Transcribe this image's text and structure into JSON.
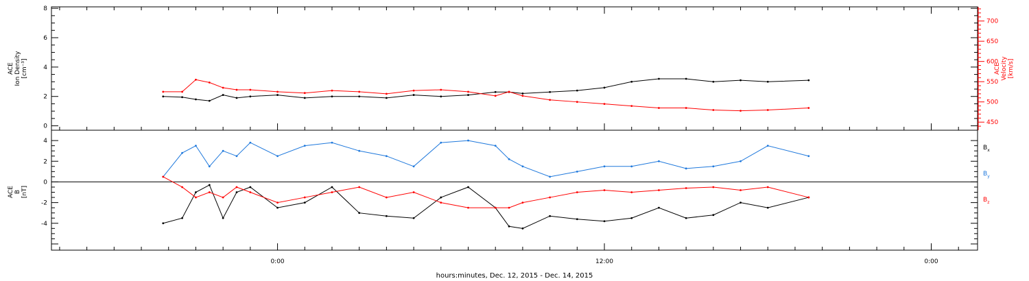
{
  "chart_data": [
    {
      "type": "scatter",
      "panel": "top",
      "ylabel": [
        "ACE",
        "Ion Density",
        "[cm⁻³]"
      ],
      "ylabel_right": [
        "ACE",
        "Velocity",
        "[km/s]"
      ],
      "ylim": [
        -0.3,
        8.1
      ],
      "ylim_right": [
        430,
        735
      ],
      "yticks": [
        0,
        2,
        4,
        6,
        8
      ],
      "yticks_right": [
        450,
        500,
        550,
        600,
        650,
        700
      ],
      "series": [
        {
          "name": "Ion Density",
          "axis": "left",
          "color": "#000000",
          "x": [
            -4.2,
            -3.5,
            -3.0,
            -2.5,
            -2.0,
            -1.5,
            -1.0,
            0,
            1,
            2,
            3,
            4,
            5,
            6,
            7,
            8,
            8.5,
            9,
            10,
            11,
            12,
            13,
            14,
            15,
            16,
            17,
            18,
            19.5
          ],
          "y": [
            2.0,
            1.95,
            1.8,
            1.7,
            2.1,
            1.9,
            2.0,
            2.1,
            1.9,
            2.0,
            2.0,
            1.9,
            2.1,
            2.0,
            2.1,
            2.3,
            2.3,
            2.2,
            2.3,
            2.4,
            2.6,
            3.0,
            3.2,
            3.2,
            3.0,
            3.1,
            3.0,
            3.1
          ]
        },
        {
          "name": "Velocity",
          "axis": "right",
          "color": "#ff0000",
          "x": [
            -4.2,
            -3.5,
            -3.0,
            -2.5,
            -2.0,
            -1.5,
            -1.0,
            0,
            1,
            2,
            3,
            4,
            5,
            6,
            7,
            8,
            8.5,
            9,
            10,
            11,
            12,
            13,
            14,
            15,
            16,
            17,
            18,
            19.5
          ],
          "y": [
            525,
            525,
            555,
            548,
            535,
            530,
            530,
            525,
            522,
            528,
            525,
            520,
            528,
            530,
            525,
            515,
            525,
            515,
            505,
            500,
            495,
            490,
            485,
            485,
            480,
            478,
            480,
            485
          ]
        }
      ]
    },
    {
      "type": "scatter",
      "panel": "bottom",
      "ylabel": [
        "ACE",
        "B",
        "[nT]"
      ],
      "ylim": [
        -6.6,
        5.0
      ],
      "yticks": [
        -4,
        -2,
        0,
        2,
        4
      ],
      "legend": [
        {
          "main": "B",
          "sub": "x",
          "color": "#000000"
        },
        {
          "main": "B",
          "sub": "y",
          "color": "#1e78dc"
        },
        {
          "main": "B",
          "sub": "z",
          "color": "#ff0000"
        }
      ],
      "series": [
        {
          "name": "Bx",
          "color": "#000000",
          "x": [
            -4.2,
            -3.5,
            -3.0,
            -2.5,
            -2.0,
            -1.5,
            -1.0,
            0,
            1,
            2,
            3,
            4,
            5,
            6,
            7,
            8,
            8.5,
            9,
            10,
            11,
            12,
            13,
            14,
            15,
            16,
            17,
            18,
            19.5
          ],
          "y": [
            -4.0,
            -3.5,
            -1.0,
            -0.3,
            -3.5,
            -1.0,
            -0.5,
            -2.5,
            -2.0,
            -0.5,
            -3.0,
            -3.3,
            -3.5,
            -1.5,
            -0.5,
            -2.5,
            -4.3,
            -4.5,
            -3.3,
            -3.6,
            -3.8,
            -3.5,
            -2.5,
            -3.5,
            -3.2,
            -2.0,
            -2.5,
            -1.5
          ]
        },
        {
          "name": "By",
          "color": "#1e78dc",
          "x": [
            -4.2,
            -3.5,
            -3.0,
            -2.5,
            -2.0,
            -1.5,
            -1.0,
            0,
            1,
            2,
            3,
            4,
            5,
            6,
            7,
            8,
            8.5,
            9,
            10,
            11,
            12,
            13,
            14,
            15,
            16,
            17,
            18,
            19.5
          ],
          "y": [
            0.5,
            2.8,
            3.5,
            1.5,
            3.0,
            2.5,
            3.8,
            2.5,
            3.5,
            3.8,
            3.0,
            2.5,
            1.5,
            3.8,
            4.0,
            3.5,
            2.2,
            1.5,
            0.5,
            1.0,
            1.5,
            1.5,
            2.0,
            1.3,
            1.5,
            2.0,
            3.5,
            2.5
          ]
        },
        {
          "name": "Bz",
          "color": "#ff0000",
          "x": [
            -4.2,
            -3.5,
            -3.0,
            -2.5,
            -2.0,
            -1.5,
            -1.0,
            0,
            1,
            2,
            3,
            4,
            5,
            6,
            7,
            8,
            8.5,
            9,
            10,
            11,
            12,
            13,
            14,
            15,
            16,
            17,
            18,
            19.5
          ],
          "y": [
            0.5,
            -0.5,
            -1.5,
            -1.0,
            -1.5,
            -0.5,
            -1.0,
            -2.0,
            -1.5,
            -1.0,
            -0.5,
            -1.5,
            -1.0,
            -2.0,
            -2.5,
            -2.5,
            -2.5,
            -2.0,
            -1.5,
            -1.0,
            -0.8,
            -1.0,
            -0.8,
            -0.6,
            -0.5,
            -0.8,
            -0.5,
            -1.5
          ]
        }
      ]
    }
  ],
  "xaxis": {
    "label": "hours:minutes, Dec. 12, 2015 - Dec. 14, 2015",
    "range": [
      -8.3,
      25.7
    ],
    "ticks": [
      {
        "x": 0,
        "label": "0:00"
      },
      {
        "x": 12,
        "label": "12:00"
      },
      {
        "x": 24,
        "label": "0:00"
      }
    ]
  },
  "colors": {
    "density": "#000000",
    "velocity": "#ff0000",
    "bx": "#000000",
    "by": "#1e78dc",
    "bz": "#ff0000"
  }
}
